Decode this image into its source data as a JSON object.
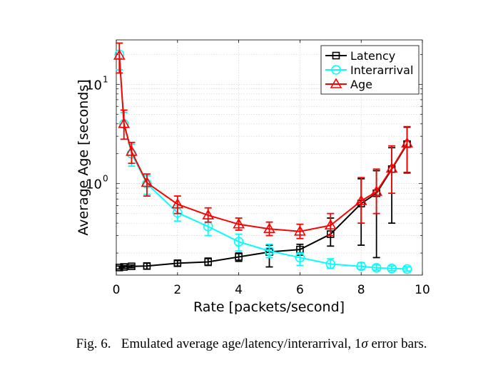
{
  "caption": {
    "label": "Fig. 6.",
    "text_before": "Emulated average age/latency/interarrival, 1",
    "sigma": "σ",
    "text_after": " error bars."
  },
  "chart_data": {
    "type": "line",
    "xlabel": "Rate [packets/second]",
    "ylabel": "Average Age [seconds]",
    "xlim": [
      0,
      10
    ],
    "ylim": [
      0.12,
      28
    ],
    "y_scale": "log",
    "x_ticks": [
      "0",
      "2",
      "4",
      "6",
      "8",
      "10"
    ],
    "y_ticks": [
      {
        "label": "10",
        "exp": "1",
        "value": 10
      },
      {
        "label": "10",
        "exp": "0",
        "value": 1
      }
    ],
    "grid": true,
    "legend_position": "top-right",
    "series": [
      {
        "name": "Latency",
        "color": "#000000",
        "marker": "square",
        "x": [
          0.1,
          0.25,
          0.5,
          1,
          2,
          3,
          4,
          5,
          6,
          7,
          8,
          8.5,
          9,
          9.5
        ],
        "y": [
          0.143,
          0.145,
          0.147,
          0.148,
          0.158,
          0.163,
          0.183,
          0.205,
          0.217,
          0.31,
          0.63,
          0.8,
          1.4,
          2.5
        ],
        "y_low": [
          0.138,
          0.14,
          0.142,
          0.138,
          0.148,
          0.15,
          0.165,
          0.145,
          0.19,
          0.235,
          0.24,
          0.18,
          0.4,
          1.28
        ],
        "y_high": [
          0.148,
          0.15,
          0.152,
          0.158,
          0.168,
          0.178,
          0.2,
          0.24,
          0.245,
          0.45,
          1.12,
          1.35,
          2.3,
          3.7
        ]
      },
      {
        "name": "Interarrival",
        "color": "#00ffff",
        "marker": "circle",
        "x": [
          0.1,
          0.25,
          0.5,
          1,
          2,
          3,
          4,
          5,
          6,
          7,
          8,
          8.5,
          9,
          9.5
        ],
        "y": [
          20,
          4.0,
          2.0,
          1.0,
          0.51,
          0.37,
          0.26,
          0.21,
          0.18,
          0.155,
          0.147,
          0.142,
          0.14,
          0.138
        ],
        "y_low": [
          14,
          2.8,
          1.5,
          0.78,
          0.42,
          0.3,
          0.21,
          0.18,
          0.15,
          0.14,
          0.137,
          0.134,
          0.133,
          0.132
        ],
        "y_high": [
          26,
          5.2,
          2.5,
          1.2,
          0.6,
          0.44,
          0.31,
          0.245,
          0.2,
          0.175,
          0.16,
          0.152,
          0.148,
          0.145
        ]
      },
      {
        "name": "Age",
        "color": "#ff0000",
        "marker": "triangle",
        "x": [
          0.1,
          0.25,
          0.5,
          1,
          2,
          3,
          4,
          5,
          6,
          7,
          8,
          8.5,
          9,
          9.5
        ],
        "y": [
          19.5,
          4.0,
          2.1,
          1.02,
          0.62,
          0.48,
          0.39,
          0.35,
          0.33,
          0.38,
          0.67,
          0.83,
          1.42,
          2.55
        ],
        "y_low": [
          13,
          2.8,
          1.6,
          0.75,
          0.5,
          0.41,
          0.34,
          0.3,
          0.28,
          0.3,
          0.4,
          0.5,
          0.8,
          1.3
        ],
        "y_high": [
          26,
          5.5,
          2.6,
          1.25,
          0.75,
          0.57,
          0.45,
          0.41,
          0.39,
          0.5,
          1.15,
          1.4,
          2.4,
          3.75
        ]
      }
    ]
  }
}
